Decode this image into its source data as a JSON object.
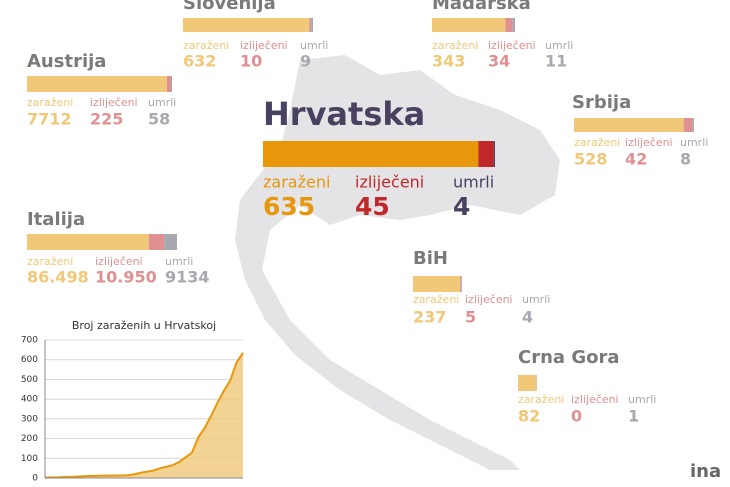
{
  "labels": [
    "zaraženi",
    "izliječeni",
    "umrli"
  ],
  "countries": [
    {
      "name": "Slovenija",
      "values": [
        632,
        10,
        9
      ]
    },
    {
      "name": "Mađarska",
      "values": [
        343,
        34,
        11
      ]
    },
    {
      "name": "Austrija",
      "values": [
        7712,
        225,
        58
      ]
    },
    {
      "name": "Srbija",
      "values": [
        528,
        42,
        8
      ]
    },
    {
      "name": "Hrvatska",
      "values": [
        635,
        45,
        4
      ]
    },
    {
      "name": "Italija",
      "values": [
        86498,
        10950,
        9134
      ],
      "value_labels": [
        "86.498",
        "10.950",
        "9134"
      ]
    },
    {
      "name": "BiH",
      "values": [
        237,
        5,
        4
      ]
    },
    {
      "name": "Crna Gora",
      "values": [
        82,
        0,
        1
      ]
    }
  ],
  "colors": [
    "#f0c878",
    "#e09090",
    "#a8a8b0"
  ],
  "main_colors": [
    "#e8960a",
    "#c0282a",
    "#4a4060"
  ],
  "logo": "ina",
  "chart_data": {
    "type": "area",
    "title": "Broj zaraženih u Hrvatskoj",
    "values": [
      1,
      3,
      3,
      5,
      6,
      7,
      9,
      10,
      11,
      12,
      12,
      12,
      13,
      14,
      19,
      27,
      32,
      38,
      49,
      57,
      65,
      81,
      105,
      128,
      206,
      254,
      315,
      382,
      442,
      495,
      586,
      635
    ],
    "color": "#f0c878",
    "line_color": "#e8960a",
    "ylim": [
      0,
      700
    ],
    "yticks": [
      0,
      100,
      200,
      300,
      400,
      500,
      600,
      700
    ],
    "grid": true
  }
}
